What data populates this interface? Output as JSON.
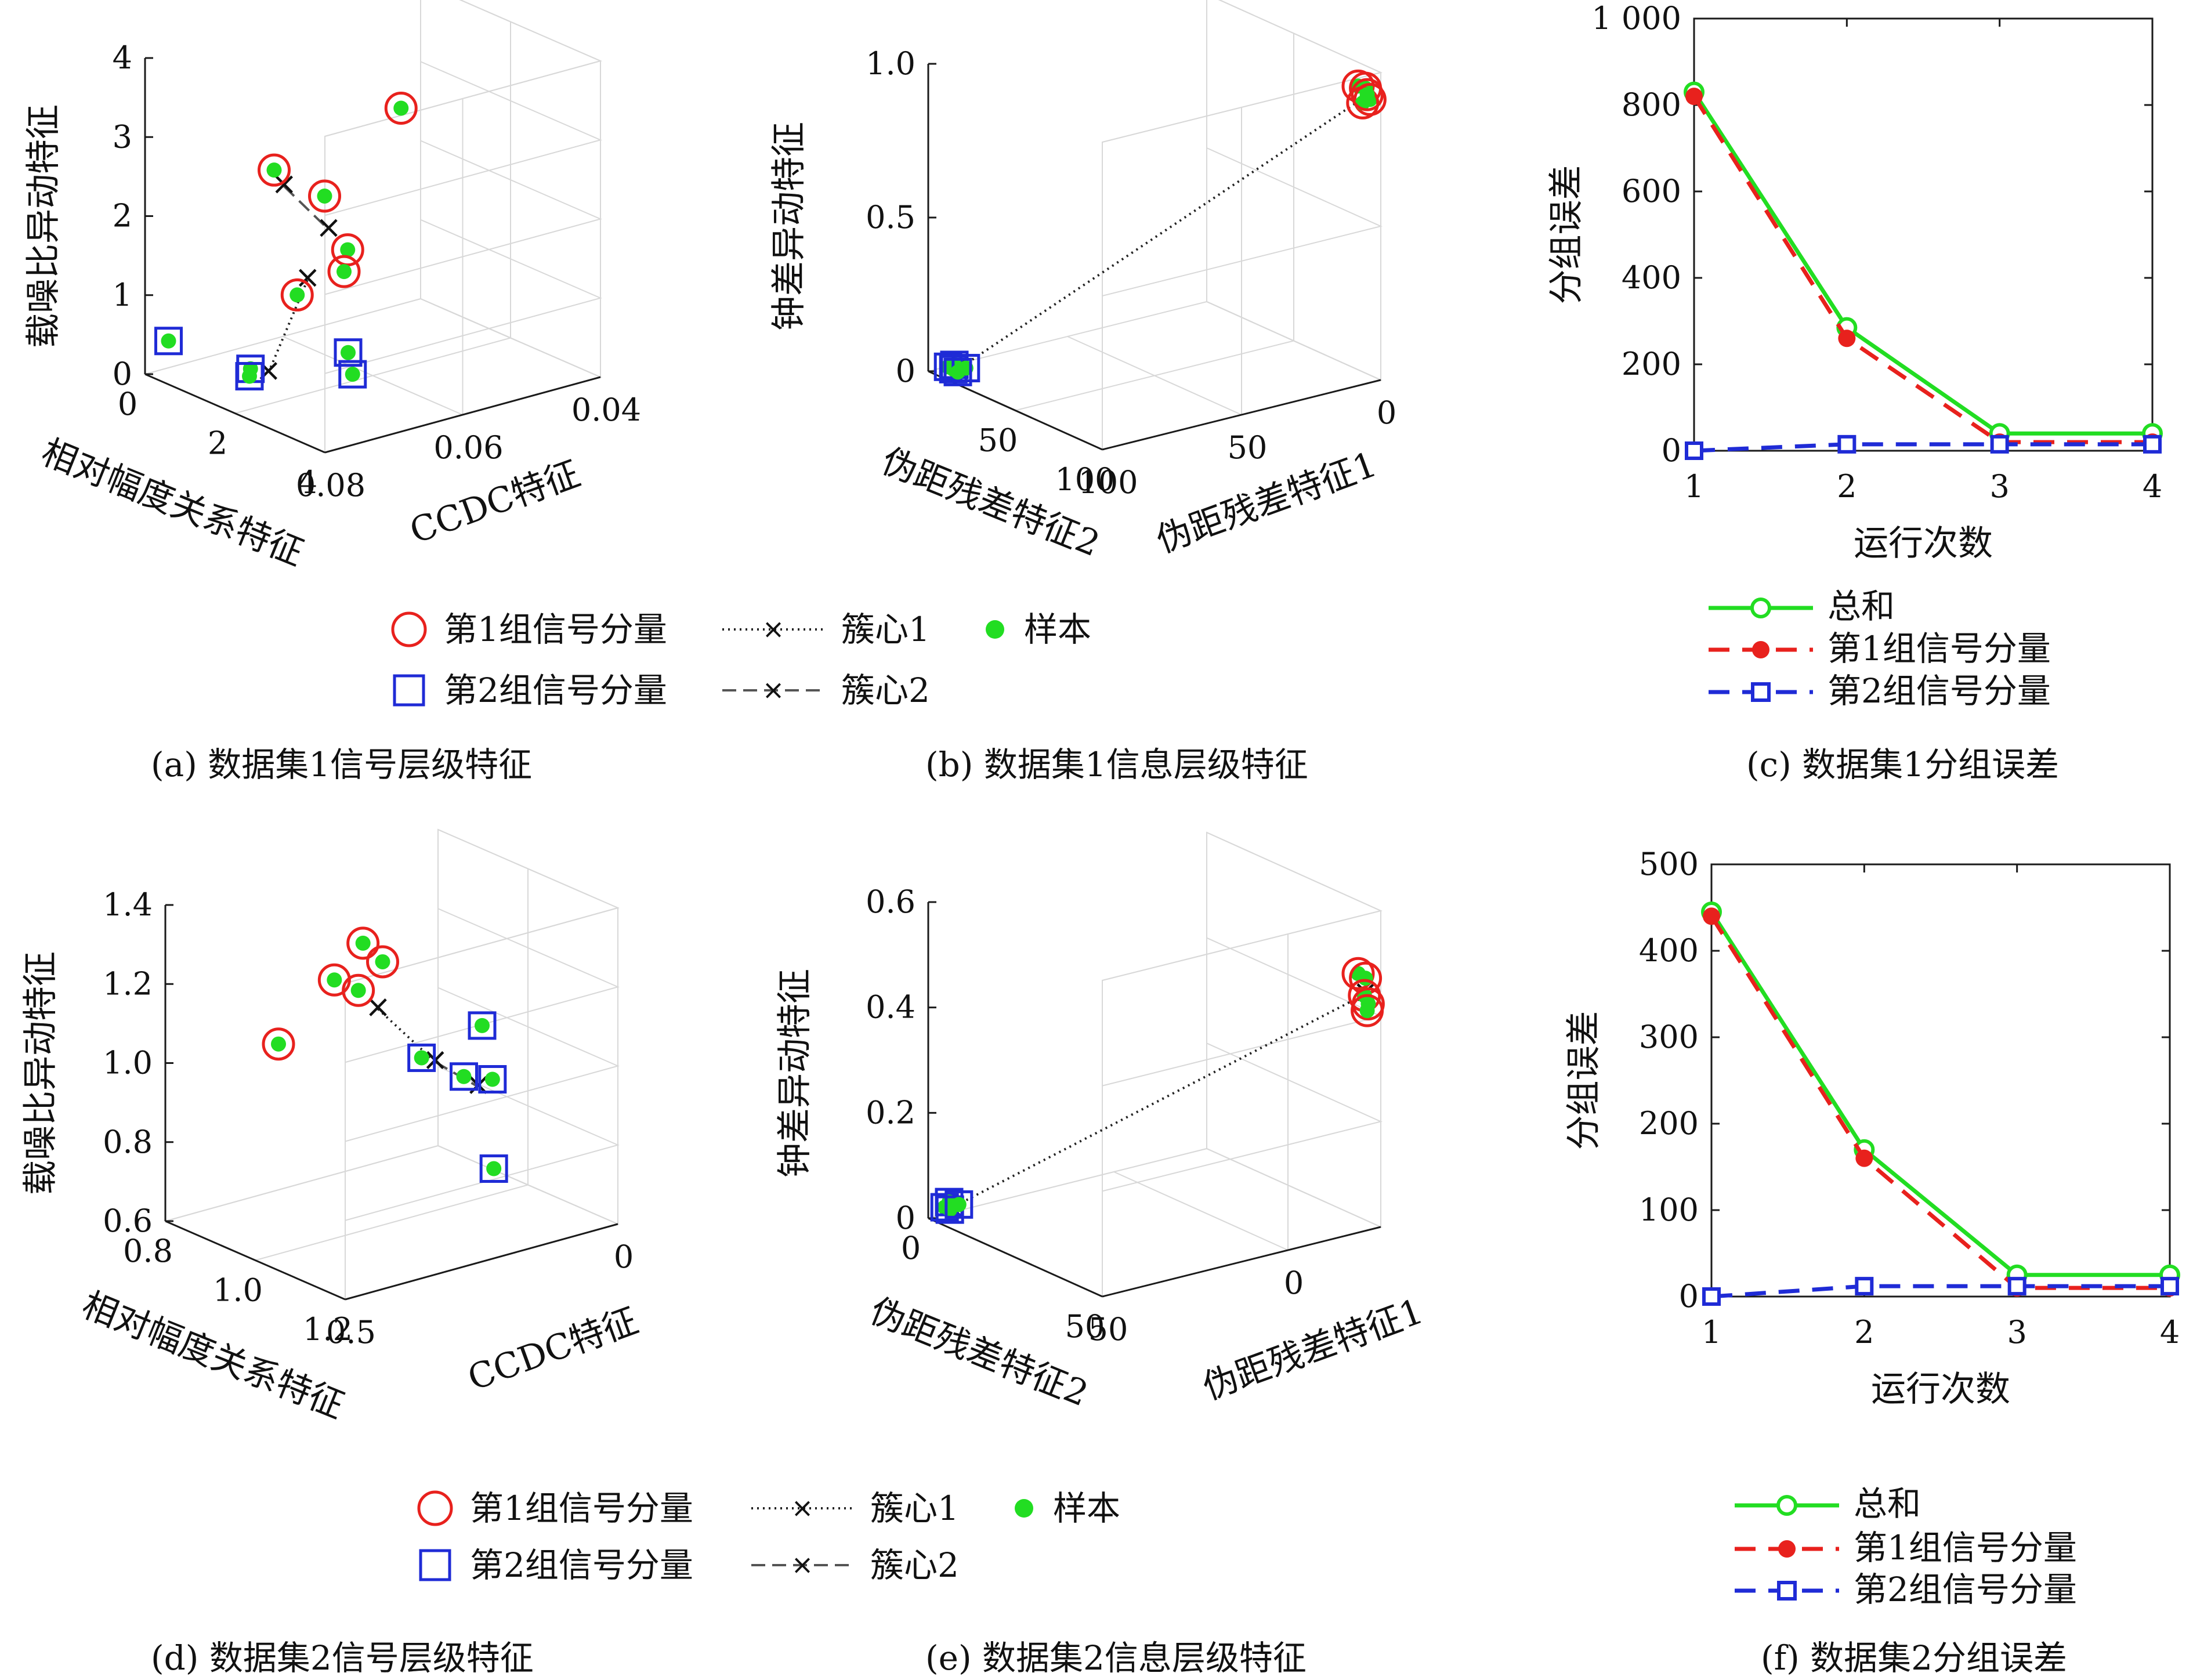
{
  "colors": {
    "group1": "#e8211d",
    "group2": "#1f2bd6",
    "sample": "#22dd22",
    "centroid": "#222222",
    "total": "#22dd22"
  },
  "legend_3d": {
    "group1": "第1组信号分量",
    "group2": "第2组信号分量",
    "centroid1": "簇心1",
    "centroid2": "簇心2",
    "sample": "样本"
  },
  "legend_err": {
    "total": "总和",
    "group1": "第1组信号分量",
    "group2": "第2组信号分量"
  },
  "chart_data": [
    {
      "id": "a",
      "type": "scatter3d",
      "caption": "(a) 数据集1信号层级特征",
      "xlabel": "相对幅度关系特征",
      "ylabel": "CCDC特征",
      "zlabel": "载噪比异动特征",
      "x_ticks": [
        "0",
        "2",
        "4"
      ],
      "y_ticks": [
        "0.08",
        "0.06",
        "0.04"
      ],
      "z_ticks": [
        "0",
        "1",
        "2",
        "3",
        "4"
      ],
      "xlim": [
        0,
        4
      ],
      "ylim": [
        0.08,
        0.03
      ],
      "zlim": [
        0,
        4
      ],
      "group1_points": [
        [
          0.3,
          0.036,
          2.6
        ],
        [
          1.3,
          0.063,
          1.0
        ],
        [
          1.4,
          0.068,
          2.7
        ],
        [
          2.3,
          0.062,
          1.8
        ],
        [
          2.4,
          0.067,
          2.6
        ],
        [
          3.2,
          0.07,
          1.9
        ]
      ],
      "group2_points": [
        [
          0.4,
          0.079,
          0.5
        ],
        [
          2.1,
          0.078,
          0.55
        ],
        [
          2.2,
          0.079,
          0.5
        ],
        [
          2.8,
          0.066,
          0.7
        ],
        [
          2.9,
          0.066,
          0.45
        ]
      ],
      "centroid1_line": [
        [
          2.5,
          0.078,
          0.6
        ],
        [
          1.9,
          0.066,
          1.4
        ]
      ],
      "centroid2_line": [
        [
          1.5,
          0.067,
          2.5
        ],
        [
          2.0,
          0.063,
          2.0
        ]
      ]
    },
    {
      "id": "b",
      "type": "scatter3d",
      "caption": "(b) 数据集1信息层级特征",
      "xlabel": "伪距残差特征2",
      "ylabel": "伪距残差特征1",
      "zlabel": "钟差异动特征",
      "x_ticks": [
        "50",
        "100"
      ],
      "y_ticks": [
        "100",
        "50",
        "0"
      ],
      "z_ticks": [
        "0",
        "0.5",
        "1.0"
      ],
      "xlim": [
        0,
        100
      ],
      "ylim": [
        100,
        0
      ],
      "zlim": [
        0,
        1.1
      ],
      "group1_points": [
        [
          95,
          5,
          1.05
        ],
        [
          96,
          3,
          1.04
        ],
        [
          97,
          2,
          1.0
        ],
        [
          96,
          4,
          0.99
        ],
        [
          97,
          3,
          1.02
        ]
      ],
      "group2_points": [
        [
          5,
          96,
          0.02
        ],
        [
          7,
          95,
          0.03
        ],
        [
          8,
          96,
          0.02
        ],
        [
          12,
          94,
          0.03
        ],
        [
          9,
          95,
          0.01
        ]
      ],
      "centroid1_line": [
        [
          9,
          95,
          0.02
        ],
        [
          96,
          3,
          1.01
        ]
      ],
      "centroid2_line": []
    },
    {
      "id": "c",
      "type": "line",
      "caption": "(c) 数据集1分组误差",
      "xlabel": "运行次数",
      "ylabel": "分组误差",
      "x": [
        1,
        2,
        3,
        4
      ],
      "x_ticks": [
        "1",
        "2",
        "3",
        "4"
      ],
      "y_ticks": [
        "0",
        "200",
        "400",
        "600",
        "800",
        "1 000"
      ],
      "ylim": [
        0,
        1000
      ],
      "series": [
        {
          "name": "总和",
          "values": [
            830,
            285,
            40,
            40
          ]
        },
        {
          "name": "第1组信号分量",
          "values": [
            820,
            260,
            20,
            20
          ]
        },
        {
          "name": "第2组信号分量",
          "values": [
            0,
            15,
            15,
            15
          ]
        }
      ]
    },
    {
      "id": "d",
      "type": "scatter3d",
      "caption": "(d) 数据集2信号层级特征",
      "xlabel": "相对幅度关系特征",
      "ylabel": "CCDC特征",
      "zlabel": "载噪比异动特征",
      "x_ticks": [
        "0.8",
        "1.0",
        "1.2"
      ],
      "y_ticks": [
        "0.5",
        "0"
      ],
      "z_ticks": [
        "0.6",
        "0.8",
        "1.0",
        "1.2",
        "1.4"
      ],
      "xlim": [
        0.7,
        1.3
      ],
      "ylim": [
        1.0,
        0
      ],
      "zlim": [
        0.6,
        1.4
      ],
      "group1_points": [
        [
          0.85,
          0.75,
          1.05
        ],
        [
          0.9,
          0.6,
          1.2
        ],
        [
          0.95,
          0.55,
          1.3
        ],
        [
          0.97,
          0.5,
          1.25
        ],
        [
          0.98,
          0.6,
          1.2
        ]
      ],
      "group2_points": [
        [
          1.1,
          0.5,
          1.05
        ],
        [
          1.15,
          0.4,
          1.0
        ],
        [
          1.12,
          0.3,
          1.1
        ],
        [
          1.2,
          0.35,
          1.0
        ],
        [
          1.25,
          0.4,
          0.8
        ]
      ],
      "centroid1_line": [
        [
          1.0,
          0.55,
          1.15
        ],
        [
          1.1,
          0.45,
          1.03
        ]
      ],
      "centroid2_line": [
        [
          1.1,
          0.45,
          1.03
        ],
        [
          1.18,
          0.38,
          0.98
        ]
      ]
    },
    {
      "id": "e",
      "type": "scatter3d",
      "caption": "(e) 数据集2信息层级特征",
      "xlabel": "伪距残差特征2",
      "ylabel": "伪距残差特征1",
      "zlabel": "钟差异动特征",
      "x_ticks": [
        "0",
        "50"
      ],
      "y_ticks": [
        "50",
        "0"
      ],
      "z_ticks": [
        "0",
        "0.2",
        "0.4",
        "0.6"
      ],
      "xlim": [
        0,
        100
      ],
      "ylim": [
        100,
        0
      ],
      "zlim": [
        0,
        0.6
      ],
      "group1_points": [
        [
          95,
          5,
          0.48
        ],
        [
          96,
          3,
          0.47
        ],
        [
          97,
          4,
          0.44
        ],
        [
          96,
          2,
          0.42
        ],
        [
          97,
          3,
          0.41
        ]
      ],
      "group2_points": [
        [
          3,
          96,
          0.02
        ],
        [
          4,
          95,
          0.03
        ],
        [
          6,
          96,
          0.02
        ],
        [
          8,
          94,
          0.03
        ]
      ],
      "centroid1_line": [
        [
          5,
          95,
          0.02
        ],
        [
          96,
          3,
          0.44
        ]
      ],
      "centroid2_line": []
    },
    {
      "id": "f",
      "type": "line",
      "caption": "(f) 数据集2分组误差",
      "xlabel": "运行次数",
      "ylabel": "分组误差",
      "x": [
        1,
        2,
        3,
        4
      ],
      "x_ticks": [
        "1",
        "2",
        "3",
        "4"
      ],
      "y_ticks": [
        "0",
        "100",
        "200",
        "300",
        "400",
        "500"
      ],
      "ylim": [
        0,
        500
      ],
      "series": [
        {
          "name": "总和",
          "values": [
            445,
            170,
            25,
            25
          ]
        },
        {
          "name": "第1组信号分量",
          "values": [
            440,
            160,
            10,
            10
          ]
        },
        {
          "name": "第2组信号分量",
          "values": [
            0,
            12,
            12,
            12
          ]
        }
      ]
    }
  ]
}
